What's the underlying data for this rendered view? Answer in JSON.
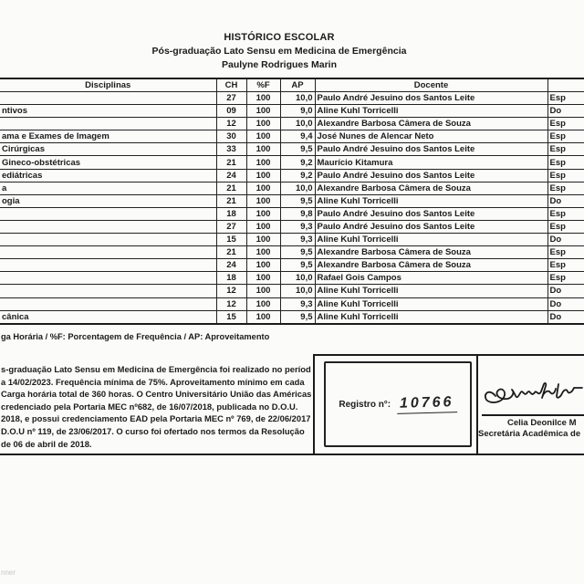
{
  "page": {
    "title": "HISTÓRICO ESCOLAR",
    "subtitle": "Pós-graduação Lato Sensu em Medicina de Emergência",
    "student_name": "Paulyne Rodrigues Marin"
  },
  "table": {
    "headers": {
      "disciplina": "Disciplinas",
      "ch": "CH",
      "freq": "%F",
      "ap": "AP",
      "docente": "Docente",
      "titulacao": ""
    },
    "rows": [
      {
        "disciplina": "",
        "ch": "27",
        "freq": "100",
        "ap": "10,0",
        "docente": "Paulo André Jesuino dos Santos Leite",
        "titulacao": "Esp"
      },
      {
        "disciplina": "ntivos",
        "ch": "09",
        "freq": "100",
        "ap": "9,0",
        "docente": "Aline Kuhl Torricelli",
        "titulacao": "Do"
      },
      {
        "disciplina": "",
        "ch": "12",
        "freq": "100",
        "ap": "10,0",
        "docente": "Alexandre Barbosa Câmera de Souza",
        "titulacao": "Esp"
      },
      {
        "disciplina": "ama e Exames de Imagem",
        "ch": "30",
        "freq": "100",
        "ap": "9,4",
        "docente": "José Nunes de Alencar Neto",
        "titulacao": "Esp"
      },
      {
        "disciplina": "Cirúrgicas",
        "ch": "33",
        "freq": "100",
        "ap": "9,5",
        "docente": "Paulo André Jesuino dos Santos Leite",
        "titulacao": "Esp"
      },
      {
        "disciplina": "Gineco-obstétricas",
        "ch": "21",
        "freq": "100",
        "ap": "9,2",
        "docente": "Maurício Kitamura",
        "titulacao": "Esp"
      },
      {
        "disciplina": "ediátricas",
        "ch": "24",
        "freq": "100",
        "ap": "9,2",
        "docente": "Paulo André Jesuino dos Santos Leite",
        "titulacao": "Esp"
      },
      {
        "disciplina": "a",
        "ch": "21",
        "freq": "100",
        "ap": "10,0",
        "docente": "Alexandre Barbosa Câmera de Souza",
        "titulacao": "Esp"
      },
      {
        "disciplina": "ogia",
        "ch": "21",
        "freq": "100",
        "ap": "9,5",
        "docente": "Aline Kuhl Torricelli",
        "titulacao": "Do"
      },
      {
        "disciplina": "",
        "ch": "18",
        "freq": "100",
        "ap": "9,8",
        "docente": "Paulo André Jesuino dos Santos Leite",
        "titulacao": "Esp"
      },
      {
        "disciplina": "",
        "ch": "27",
        "freq": "100",
        "ap": "9,3",
        "docente": "Paulo André Jesuino dos Santos Leite",
        "titulacao": "Esp"
      },
      {
        "disciplina": "",
        "ch": "15",
        "freq": "100",
        "ap": "9,3",
        "docente": "Aline Kuhl Torricelli",
        "titulacao": "Do"
      },
      {
        "disciplina": "",
        "ch": "21",
        "freq": "100",
        "ap": "9,5",
        "docente": "Alexandre Barbosa Câmera de Souza",
        "titulacao": "Esp"
      },
      {
        "disciplina": "",
        "ch": "24",
        "freq": "100",
        "ap": "9,5",
        "docente": "Alexandre Barbosa Câmera de Souza",
        "titulacao": "Esp"
      },
      {
        "disciplina": "",
        "ch": "18",
        "freq": "100",
        "ap": "10,0",
        "docente": "Rafael Gois Campos",
        "titulacao": "Esp"
      },
      {
        "disciplina": "",
        "ch": "12",
        "freq": "100",
        "ap": "10,0",
        "docente": "Aline Kuhl Torricelli",
        "titulacao": "Do"
      },
      {
        "disciplina": "",
        "ch": "12",
        "freq": "100",
        "ap": "9,3",
        "docente": "Aline Kuhl Torricelli",
        "titulacao": "Do"
      },
      {
        "disciplina": "cânica",
        "ch": "15",
        "freq": "100",
        "ap": "9,5",
        "docente": "Aline Kuhl Torricelli",
        "titulacao": "Do"
      }
    ]
  },
  "legend": "ga Horária / %F: Porcentagem de Frequência / AP: Aproveitamento",
  "certificate": {
    "lines": [
      "s-graduação Lato Sensu em Medicina de Emergência foi realizado no período",
      "a 14/02/2023. Frequência mínima de 75%. Aproveitamento mínimo em cada",
      "Carga horária total de 360 horas. O Centro Universitário União das Américas",
      "credenciado pela Portaria MEC nº682, de 16/07/2018, publicada no D.O.U.",
      "2018, e possui credenciamento EAD pela Portaria MEC nº 769, de 22/06/2017.",
      "D.O.U nº 119, de 23/06/2017. O curso foi ofertado nos termos da Resolução",
      "de 06 de abril de 2018."
    ]
  },
  "registro": {
    "label": "Registro n°:",
    "value": "10766"
  },
  "signature": {
    "name": "Celia Deonilce M",
    "title": "Secretária Acadêmica de"
  },
  "watermark": "nner",
  "colors": {
    "ink": "#1b1b1b",
    "paper": "#fbfbfa",
    "watermark": "#c7c7c4"
  }
}
